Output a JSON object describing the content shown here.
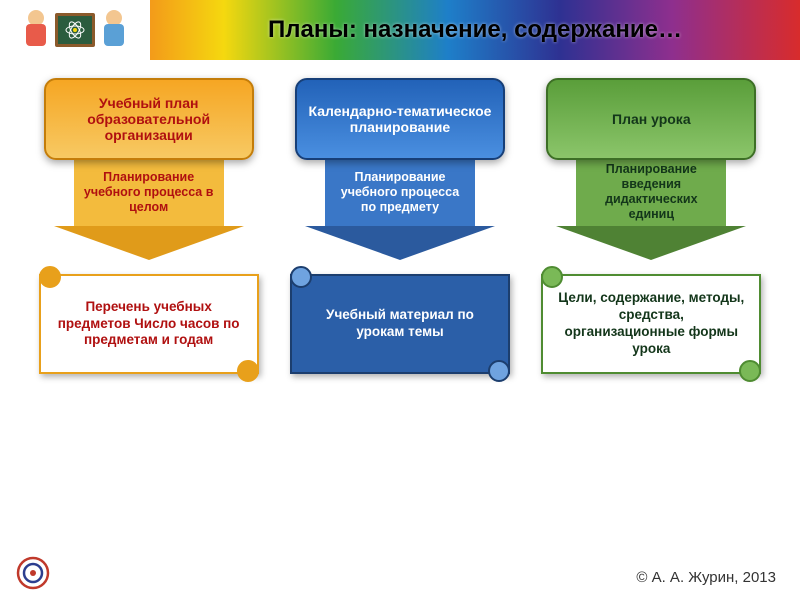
{
  "title": "Планы: назначение, содержание…",
  "footer": "© А. А. Журин, 2013",
  "columns": [
    {
      "top_label": "Учебный план образовательной организации",
      "top_bg_gradient_top": "#f6a623",
      "top_bg_gradient_bottom": "#f7c963",
      "top_border": "#c47d0a",
      "top_text_color": "#b01010",
      "arrow_label": "Планирование учебного процесса в целом",
      "arrow_bg": "#f3bb3d",
      "arrow_border_tip": "#e09b1a",
      "arrow_text_color": "#b01010",
      "scroll_label": "Перечень учебных предметов\nЧисло часов по предметам и годам",
      "scroll_bg": "#ffffff",
      "scroll_border": "#e8a01b",
      "scroll_text_color": "#b01010",
      "curl_color": "#e8a01b"
    },
    {
      "top_label": "Календарно-тематическое планирование",
      "top_bg_gradient_top": "#2262b8",
      "top_bg_gradient_bottom": "#4a8fe0",
      "top_border": "#173f78",
      "top_text_color": "#ffffff",
      "arrow_label": "Планирование учебного процесса по предмету",
      "arrow_bg": "#3a77c7",
      "arrow_border_tip": "#2b5a9e",
      "arrow_text_color": "#ffffff",
      "scroll_label": "Учебный материал по урокам темы",
      "scroll_bg": "#2b5fa8",
      "scroll_border": "#1c3e6e",
      "scroll_text_color": "#ffffff",
      "curl_color": "#6fa3e0"
    },
    {
      "top_label": "План урока",
      "top_bg_gradient_top": "#5a9e3a",
      "top_bg_gradient_bottom": "#8bc56a",
      "top_border": "#3d6f26",
      "top_text_color": "#13361a",
      "arrow_label": "Планирование введения дидактических единиц",
      "arrow_bg": "#6fab4c",
      "arrow_border_tip": "#4f8234",
      "arrow_text_color": "#13361a",
      "scroll_label": "Цели, содержание, методы, средства, организационные формы урока",
      "scroll_bg": "#ffffff",
      "scroll_border": "#4f8c32",
      "scroll_text_color": "#13361a",
      "curl_color": "#7ab957"
    }
  ],
  "header_kids": [
    {
      "head": "#f3c690",
      "body": "#e85b4a"
    },
    {
      "head": "#f3c690",
      "body": "#5aa0d6"
    }
  ]
}
